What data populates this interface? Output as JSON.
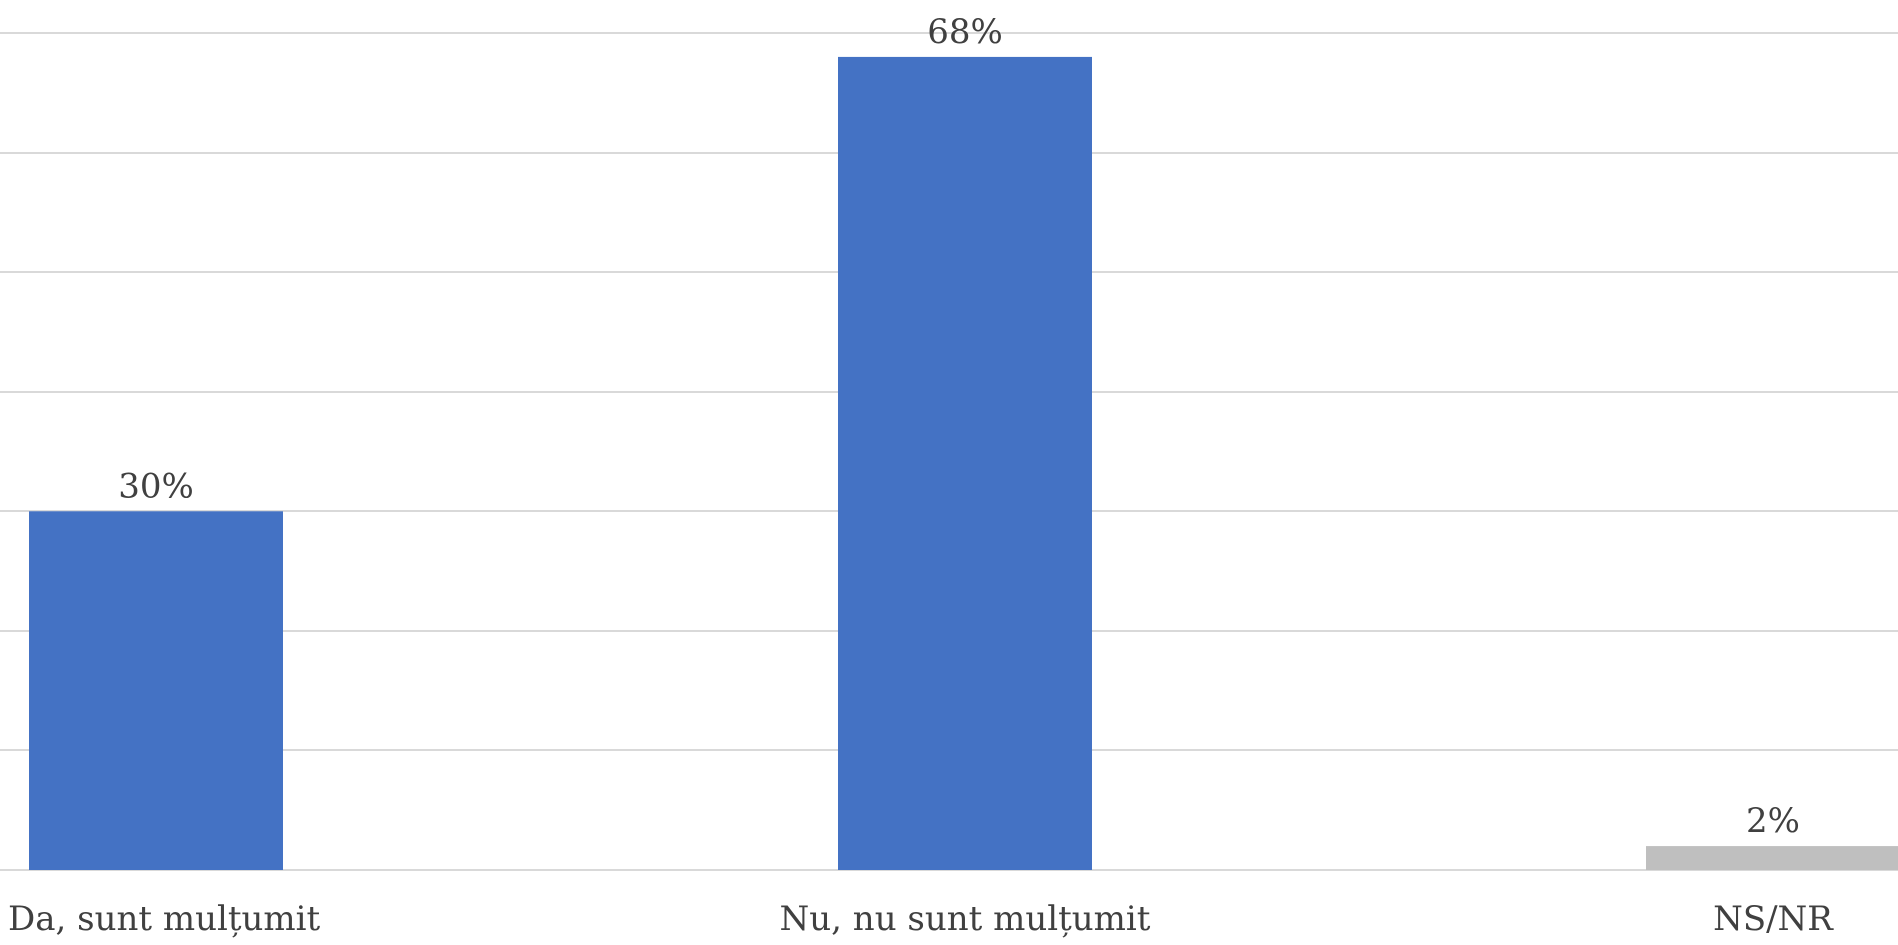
{
  "chart_data": {
    "type": "bar",
    "categories": [
      "Da, sunt mulțumit",
      "Nu, nu sunt mulțumit",
      "NS/NR"
    ],
    "values": [
      30,
      68,
      2
    ],
    "data_labels": [
      "30%",
      "68%",
      "2%"
    ],
    "colors": [
      "#4472c4",
      "#4472c4",
      "#bfbfbf"
    ],
    "title": "",
    "xlabel": "",
    "ylabel": "",
    "ylim": [
      0,
      70
    ],
    "ytick_step": 10,
    "grid": true,
    "legend": "none"
  }
}
